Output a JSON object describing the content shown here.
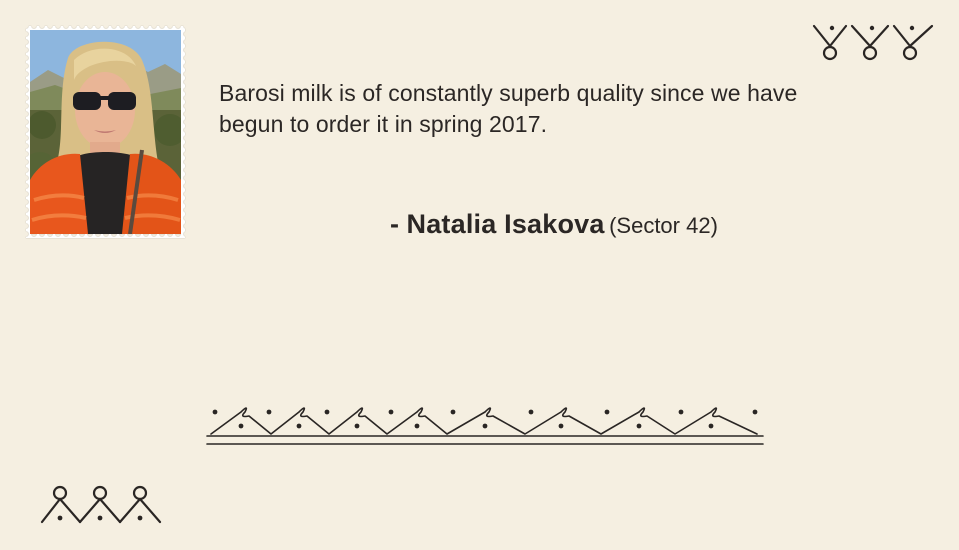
{
  "testimonial": {
    "quote": "Barosi milk is of constantly superb quality since we have begun to order it in spring 2017.",
    "dash": "- ",
    "author": "Natalia Isakova",
    "sector": "(Sector 42)"
  },
  "icons": {
    "photo": "portrait-photo-icon",
    "top_right": "folk-ornament-top-right-icon",
    "middle": "folk-ornament-border-icon",
    "bottom_left": "folk-ornament-bottom-left-icon"
  },
  "colors": {
    "background": "#f5efe1",
    "text": "#2b2725",
    "ornament": "#2a2624"
  }
}
